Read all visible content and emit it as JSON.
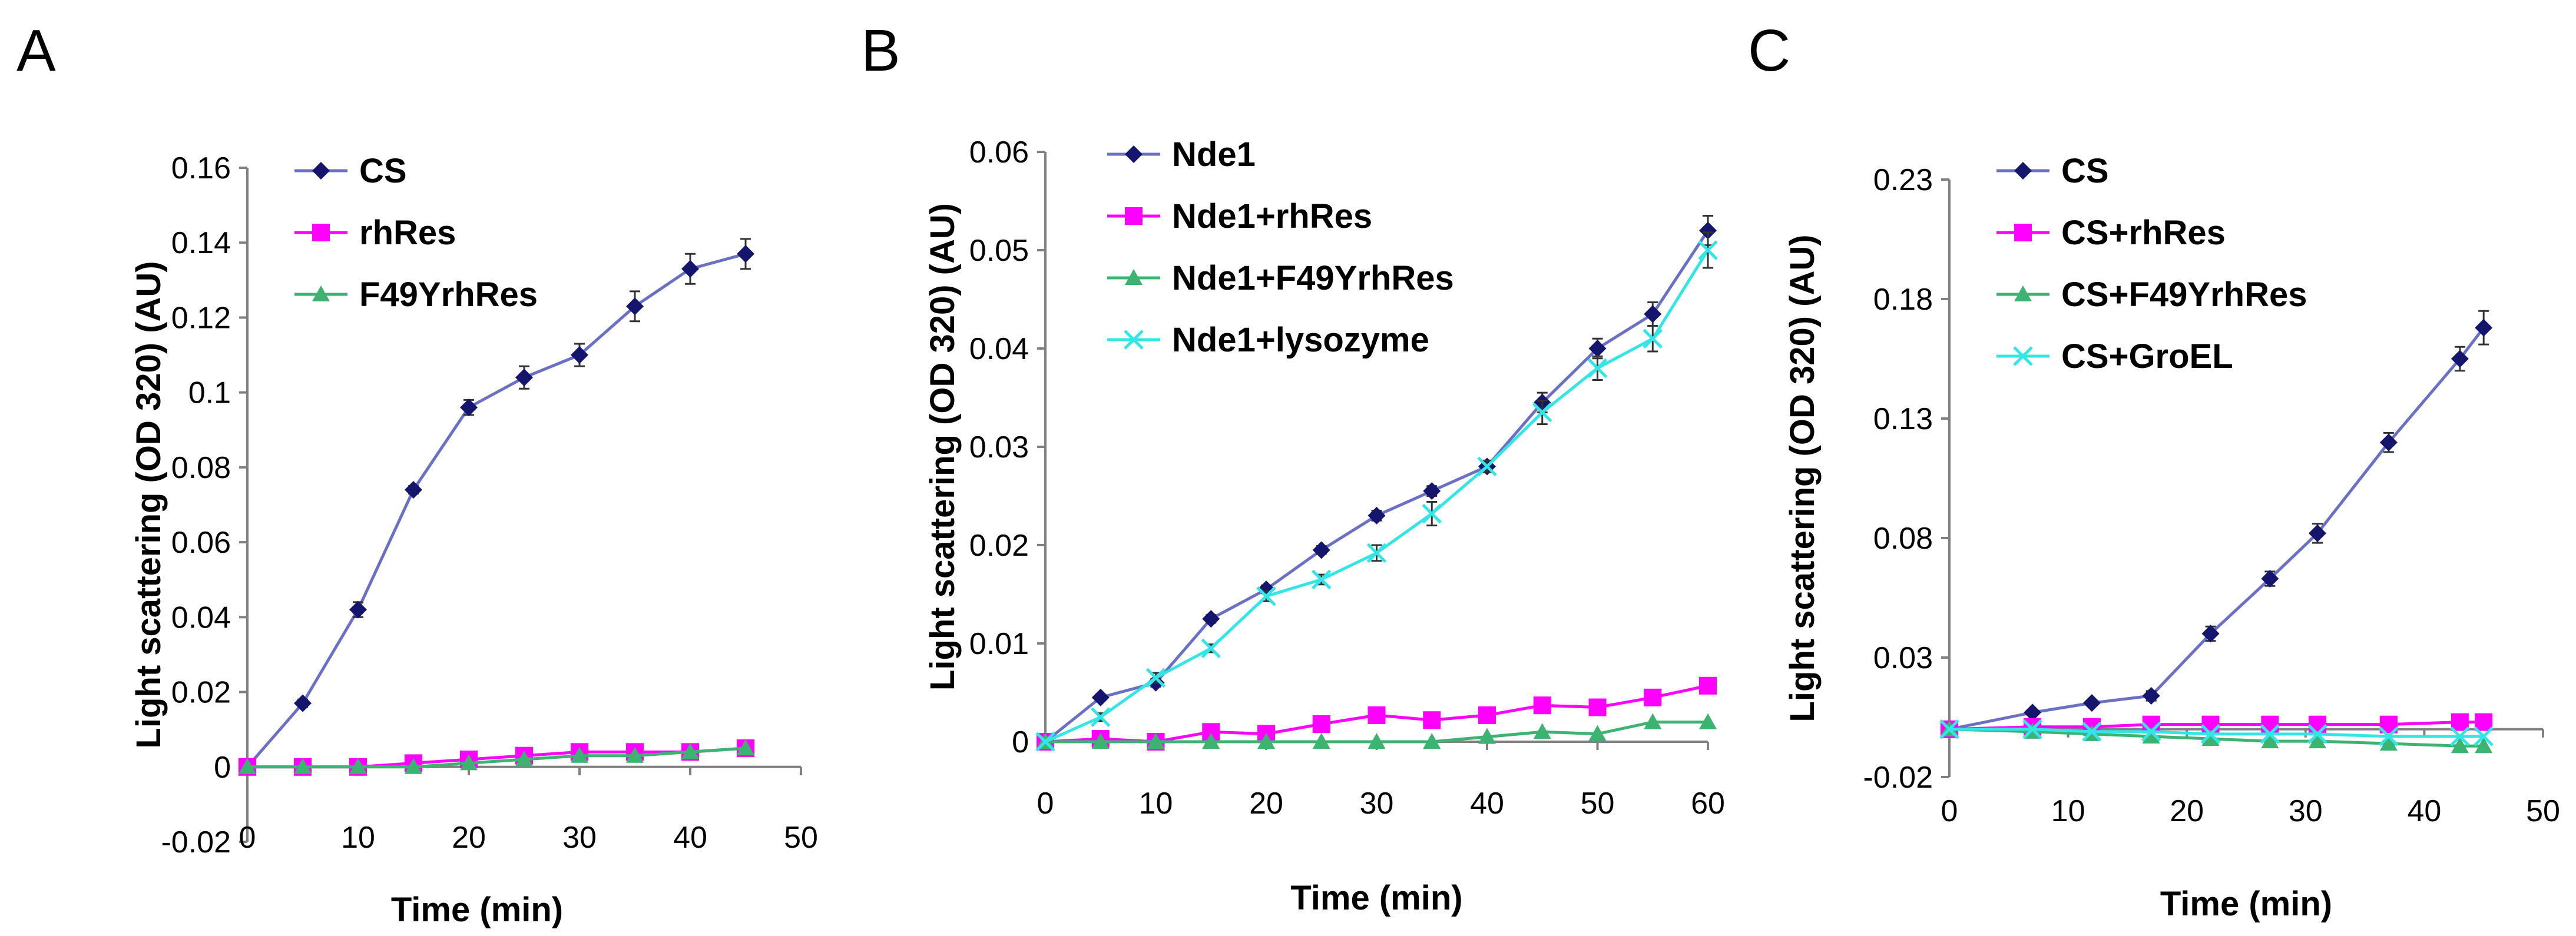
{
  "chart_data": [
    {
      "type": "line",
      "panel_label": "A",
      "xlabel": "Time (min)",
      "ylabel": "Light scattering (OD 320) (AU)",
      "xlim": [
        0,
        50
      ],
      "ylim": [
        -0.02,
        0.16
      ],
      "x_ticks": [
        "0",
        "10",
        "20",
        "30",
        "40",
        "50"
      ],
      "y_ticks": [
        "-0.02",
        "0",
        "0.02",
        "0.04",
        "0.06",
        "0.08",
        "0.1",
        "0.12",
        "0.14",
        "0.16"
      ],
      "grid": false,
      "legend_position": "top-left",
      "series": [
        {
          "name": "CS",
          "color": "#6b6fc6",
          "marker_color": "#15156e",
          "marker": "diamond",
          "x": [
            0,
            5,
            10,
            15,
            20,
            25,
            30,
            35,
            40,
            45
          ],
          "y": [
            0,
            0.017,
            0.042,
            0.074,
            0.096,
            0.104,
            0.11,
            0.123,
            0.133,
            0.137
          ],
          "err": [
            0,
            0.001,
            0.002,
            0.001,
            0.002,
            0.003,
            0.003,
            0.004,
            0.004,
            0.004
          ]
        },
        {
          "name": "rhRes",
          "color": "#ff00ff",
          "marker_color": "#ff00ff",
          "marker": "square",
          "x": [
            0,
            5,
            10,
            15,
            20,
            25,
            30,
            35,
            40,
            45
          ],
          "y": [
            0,
            0.0,
            0.0,
            0.001,
            0.002,
            0.003,
            0.004,
            0.004,
            0.004,
            0.005
          ],
          "err": [
            0,
            0,
            0,
            0,
            0,
            0,
            0,
            0,
            0,
            0
          ]
        },
        {
          "name": "F49YrhRes",
          "color": "#3cb371",
          "marker_color": "#3cb371",
          "marker": "triangle",
          "x": [
            0,
            5,
            10,
            15,
            20,
            25,
            30,
            35,
            40,
            45
          ],
          "y": [
            0,
            0.0,
            0.0,
            0.0,
            0.001,
            0.002,
            0.003,
            0.003,
            0.004,
            0.005
          ],
          "err": [
            0,
            0,
            0,
            0,
            0,
            0,
            0,
            0,
            0,
            0
          ]
        }
      ]
    },
    {
      "type": "line",
      "panel_label": "B",
      "xlabel": "Time (min)",
      "ylabel": "Light scattering (OD 320) (AU)",
      "xlim": [
        0,
        60
      ],
      "ylim": [
        0,
        0.06
      ],
      "x_ticks": [
        "0",
        "10",
        "20",
        "30",
        "40",
        "50",
        "60"
      ],
      "y_ticks": [
        "0",
        "0.01",
        "0.02",
        "0.03",
        "0.04",
        "0.05",
        "0.06"
      ],
      "grid": false,
      "legend_position": "top-left",
      "series": [
        {
          "name": "Nde1",
          "color": "#6b6fc6",
          "marker_color": "#15156e",
          "marker": "diamond",
          "x": [
            0,
            5,
            10,
            15,
            20,
            25,
            30,
            35,
            40,
            45,
            50,
            55,
            60
          ],
          "y": [
            0,
            0.0045,
            0.006,
            0.0125,
            0.0155,
            0.0195,
            0.023,
            0.0255,
            0.028,
            0.0345,
            0.04,
            0.0435,
            0.052
          ],
          "err": [
            0,
            0.0003,
            0.0004,
            0.0004,
            0.0004,
            0.0004,
            0.0005,
            0.0005,
            0.0005,
            0.001,
            0.001,
            0.0012,
            0.0015
          ]
        },
        {
          "name": "Nde1+rhRes",
          "color": "#ff00ff",
          "marker_color": "#ff00ff",
          "marker": "square",
          "x": [
            0,
            5,
            10,
            15,
            20,
            25,
            30,
            35,
            40,
            45,
            50,
            55,
            60
          ],
          "y": [
            0,
            0.0003,
            0.0,
            0.001,
            0.0008,
            0.0018,
            0.0027,
            0.0022,
            0.0027,
            0.0037,
            0.0035,
            0.0045,
            0.0057
          ],
          "err": [
            0,
            0,
            0,
            0,
            0,
            0,
            0,
            0,
            0,
            0,
            0,
            0,
            0
          ]
        },
        {
          "name": "Nde1+F49YrhRes",
          "color": "#3cb371",
          "marker_color": "#3cb371",
          "marker": "triangle",
          "x": [
            0,
            5,
            10,
            15,
            20,
            25,
            30,
            35,
            40,
            45,
            50,
            55,
            60
          ],
          "y": [
            0,
            0.0,
            0.0,
            0.0,
            0.0,
            0.0,
            0.0,
            0.0,
            0.0005,
            0.001,
            0.0008,
            0.002,
            0.002
          ],
          "err": [
            0,
            0,
            0,
            0,
            0,
            0,
            0,
            0,
            0,
            0,
            0,
            0,
            0
          ]
        },
        {
          "name": "Nde1+lysozyme",
          "color": "#33e5e5",
          "marker_color": "#33e5e5",
          "marker": "x",
          "x": [
            0,
            5,
            10,
            15,
            20,
            25,
            30,
            35,
            40,
            45,
            50,
            55,
            60
          ],
          "y": [
            0,
            0.0025,
            0.0065,
            0.0095,
            0.0148,
            0.0165,
            0.0192,
            0.0232,
            0.028,
            0.0335,
            0.038,
            0.041,
            0.05
          ],
          "err": [
            0,
            0.0004,
            0.0005,
            0.0004,
            0.0005,
            0.0005,
            0.0008,
            0.0012,
            0.0006,
            0.0012,
            0.0012,
            0.0013,
            0.0018
          ]
        }
      ]
    },
    {
      "type": "line",
      "panel_label": "C",
      "xlabel": "Time (min)",
      "ylabel": "Light scattering (OD 320) (AU)",
      "xlim": [
        0,
        50
      ],
      "ylim": [
        -0.02,
        0.23
      ],
      "x_ticks": [
        "0",
        "10",
        "20",
        "30",
        "40",
        "50"
      ],
      "y_ticks": [
        "-0.02",
        "0.03",
        "0.08",
        "0.13",
        "0.18",
        "0.23"
      ],
      "grid": false,
      "legend_position": "top-left",
      "series": [
        {
          "name": "CS",
          "color": "#6b6fc6",
          "marker_color": "#15156e",
          "marker": "diamond",
          "x": [
            0,
            7,
            12,
            17,
            22,
            27,
            31,
            37,
            43,
            45
          ],
          "y": [
            0,
            0.007,
            0.011,
            0.014,
            0.04,
            0.063,
            0.082,
            0.12,
            0.155,
            0.168
          ],
          "err": [
            0,
            0.001,
            0.001,
            0.002,
            0.003,
            0.003,
            0.004,
            0.004,
            0.005,
            0.007
          ]
        },
        {
          "name": "CS+rhRes",
          "color": "#ff00ff",
          "marker_color": "#ff00ff",
          "marker": "square",
          "x": [
            0,
            7,
            12,
            17,
            22,
            27,
            31,
            37,
            43,
            45
          ],
          "y": [
            0,
            0.001,
            0.001,
            0.002,
            0.002,
            0.002,
            0.002,
            0.002,
            0.003,
            0.003
          ],
          "err": [
            0,
            0,
            0,
            0,
            0,
            0,
            0,
            0,
            0,
            0
          ]
        },
        {
          "name": "CS+F49YrhRes",
          "color": "#3cb371",
          "marker_color": "#3cb371",
          "marker": "triangle",
          "x": [
            0,
            7,
            12,
            17,
            22,
            27,
            31,
            37,
            43,
            45
          ],
          "y": [
            0,
            -0.001,
            -0.002,
            -0.003,
            -0.004,
            -0.005,
            -0.005,
            -0.006,
            -0.007,
            -0.007
          ],
          "err": [
            0,
            0,
            0,
            0,
            0,
            0,
            0,
            0,
            0,
            0
          ]
        },
        {
          "name": "CS+GroEL",
          "color": "#33e5e5",
          "marker_color": "#33e5e5",
          "marker": "x",
          "x": [
            0,
            7,
            12,
            17,
            22,
            27,
            31,
            37,
            43,
            45
          ],
          "y": [
            0,
            0.0,
            -0.001,
            -0.001,
            -0.002,
            -0.002,
            -0.002,
            -0.003,
            -0.003,
            -0.003
          ],
          "err": [
            0,
            0,
            0,
            0,
            0,
            0,
            0,
            0,
            0,
            0
          ]
        }
      ]
    }
  ]
}
